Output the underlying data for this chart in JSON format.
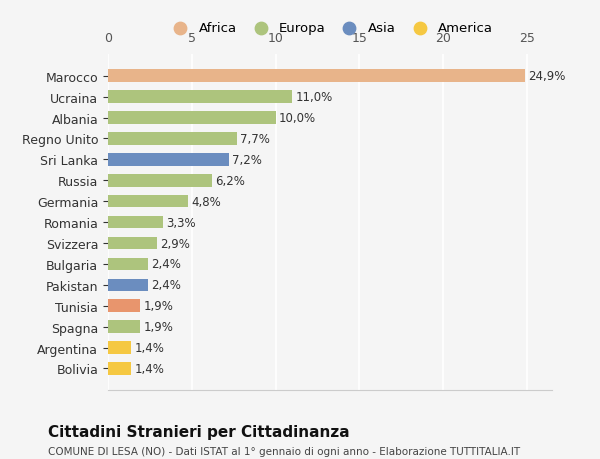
{
  "categories": [
    "Bolivia",
    "Argentina",
    "Spagna",
    "Tunisia",
    "Pakistan",
    "Bulgaria",
    "Svizzera",
    "Romania",
    "Germania",
    "Russia",
    "Sri Lanka",
    "Regno Unito",
    "Albania",
    "Ucraina",
    "Marocco"
  ],
  "values": [
    1.4,
    1.4,
    1.9,
    1.9,
    2.4,
    2.4,
    2.9,
    3.3,
    4.8,
    6.2,
    7.2,
    7.7,
    10.0,
    11.0,
    24.9
  ],
  "colors": [
    "#f5c842",
    "#f5c842",
    "#adc47d",
    "#e8956d",
    "#6b8dbf",
    "#adc47d",
    "#adc47d",
    "#adc47d",
    "#adc47d",
    "#adc47d",
    "#6b8dbf",
    "#adc47d",
    "#adc47d",
    "#adc47d",
    "#e8b48a"
  ],
  "labels": [
    "1,4%",
    "1,4%",
    "1,9%",
    "1,9%",
    "2,4%",
    "2,4%",
    "2,9%",
    "3,3%",
    "4,8%",
    "6,2%",
    "7,2%",
    "7,7%",
    "10,0%",
    "11,0%",
    "24,9%"
  ],
  "legend": [
    {
      "label": "Africa",
      "color": "#e8b48a"
    },
    {
      "label": "Europa",
      "color": "#adc47d"
    },
    {
      "label": "Asia",
      "color": "#6b8dbf"
    },
    {
      "label": "America",
      "color": "#f5c842"
    }
  ],
  "xlim": [
    0,
    26.5
  ],
  "xticks": [
    0,
    5,
    10,
    15,
    20,
    25
  ],
  "title": "Cittadini Stranieri per Cittadinanza",
  "subtitle": "COMUNE DI LESA (NO) - Dati ISTAT al 1° gennaio di ogni anno - Elaborazione TUTTITALIA.IT",
  "background_color": "#f5f5f5",
  "bar_height": 0.6
}
